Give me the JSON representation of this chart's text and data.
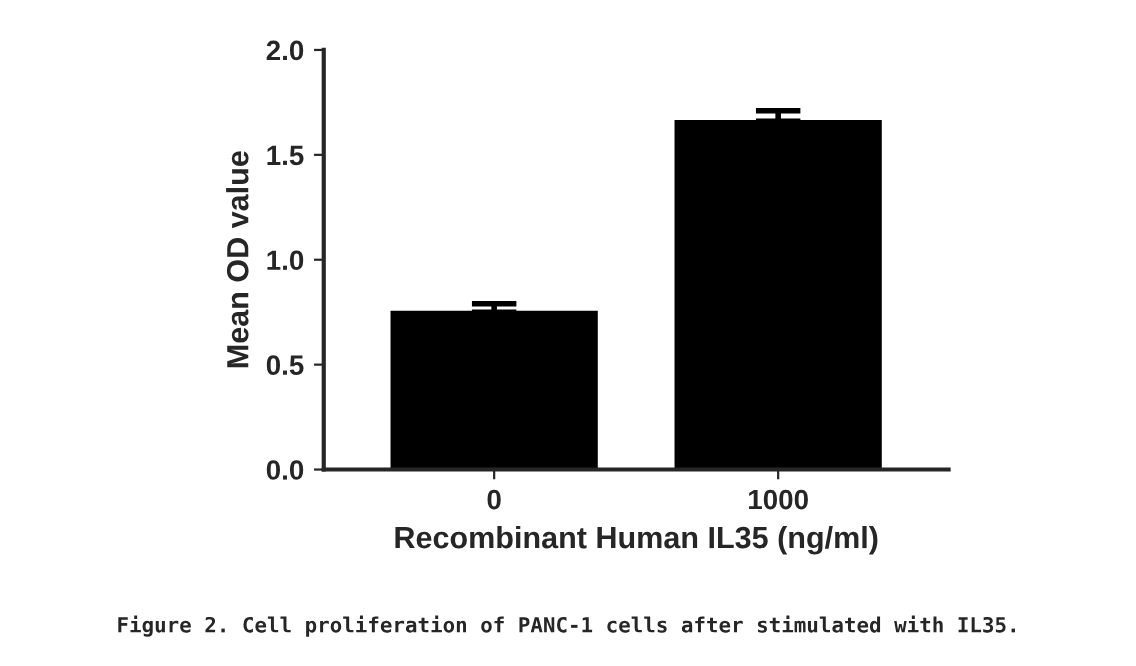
{
  "chart_data": {
    "type": "bar",
    "categories": [
      "0",
      "1000"
    ],
    "values": [
      0.75,
      1.66
    ],
    "errors": [
      [
        0.75,
        0.79
      ],
      [
        1.66,
        1.71
      ]
    ],
    "color": "#000000",
    "xlabel": "Recombinant Human IL35 (ng/ml)",
    "ylabel": "Mean OD value",
    "ylim": [
      0,
      2.0
    ],
    "yticks": [
      {
        "value": 0,
        "label": "0.0"
      },
      0.5,
      {
        "value": 1,
        "label": "1.0"
      },
      1.5,
      {
        "value": 2,
        "label": "2.0"
      }
    ],
    "grid": false,
    "annotations": [
      "Figure 2. Cell proliferation of PANC-1 cells after stimulated with IL35."
    ]
  }
}
